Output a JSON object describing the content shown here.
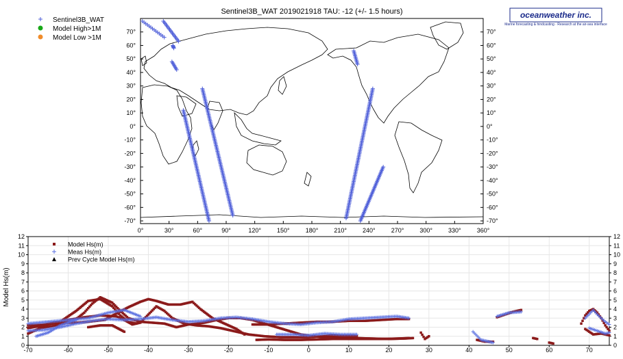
{
  "map_panel": {
    "title": "Sentinel3B_WAT 2019021918 TAU: -12 (+/- 1.5 hours)",
    "logo_text": "oceanweather inc.",
    "logo_tagline": "Marine forecasting & hindcasting · Research at the air-sea interface",
    "legend": [
      {
        "label": "Sentinel3B_WAT",
        "symbol": "plus",
        "color": "#4f5fd9"
      },
      {
        "label": "Model High>1M",
        "symbol": "circle",
        "color": "#18a818"
      },
      {
        "label": "Model Low >1M",
        "symbol": "circle",
        "color": "#f08c2a"
      }
    ],
    "x_ticks": [
      "0°",
      "30°",
      "60°",
      "90°",
      "120°",
      "150°",
      "180°",
      "210°",
      "240°",
      "270°",
      "300°",
      "330°",
      "360°"
    ],
    "y_ticks": [
      "70°",
      "60°",
      "50°",
      "40°",
      "30°",
      "20°",
      "10°",
      "0°",
      "-10°",
      "-20°",
      "-30°",
      "-40°",
      "-50°",
      "-60°",
      "-70°"
    ],
    "tracks": [
      {
        "lon": [
          2,
          25
        ],
        "lat": [
          78,
          66
        ]
      },
      {
        "lon": [
          24,
          40
        ],
        "lat": [
          78,
          63
        ]
      },
      {
        "lon": [
          34,
          35
        ],
        "lat": [
          60,
          58
        ]
      },
      {
        "lon": [
          33,
          38
        ],
        "lat": [
          48,
          42
        ]
      },
      {
        "lon": [
          45,
          72
        ],
        "lat": [
          12,
          -70
        ]
      },
      {
        "lon": [
          65,
          97
        ],
        "lat": [
          28,
          -66
        ]
      },
      {
        "lon": [
          216,
          244
        ],
        "lat": [
          -68,
          28
        ]
      },
      {
        "lon": [
          231,
          255
        ],
        "lat": [
          -70,
          -30
        ]
      },
      {
        "lon": [
          224,
          228
        ],
        "lat": [
          56,
          46
        ]
      }
    ]
  },
  "chart_data": {
    "type": "scatter",
    "title": "",
    "xlabel": "",
    "ylabel": "Model Hs(m)",
    "xlim": [
      -70,
      75
    ],
    "ylim": [
      0,
      12
    ],
    "x_ticks": [
      -70,
      -60,
      -50,
      -40,
      -30,
      -20,
      -10,
      0,
      10,
      20,
      30,
      40,
      50,
      60,
      70
    ],
    "y_ticks": [
      0,
      1,
      2,
      3,
      4,
      5,
      6,
      7,
      8,
      9,
      10,
      11,
      12
    ],
    "legend_position": "top-left",
    "series": [
      {
        "name": "Model Hs(m)",
        "marker": "square",
        "color": "#8b1a1a",
        "segments": [
          [
            [
              -70,
              1.3
            ],
            [
              -67,
              1.9
            ],
            [
              -64,
              2.1
            ],
            [
              -61,
              2.4
            ],
            [
              -58,
              2.9
            ],
            [
              -56,
              3.6
            ],
            [
              -54,
              4.6
            ],
            [
              -52,
              5.3
            ],
            [
              -49,
              4.7
            ],
            [
              -47,
              3.8
            ],
            [
              -45,
              3.0
            ],
            [
              -42,
              2.6
            ],
            [
              -39,
              2.5
            ],
            [
              -36,
              2.4
            ],
            [
              -33,
              2.0
            ],
            [
              -30,
              2.3
            ],
            [
              -26,
              2.5
            ],
            [
              -23,
              2.8
            ],
            [
              -20,
              3.0
            ],
            [
              -17,
              3.0
            ],
            [
              -14,
              2.8
            ],
            [
              -11,
              2.4
            ],
            [
              -8,
              2.0
            ],
            [
              -5,
              1.6
            ],
            [
              -2,
              1.2
            ],
            [
              1,
              1.0
            ],
            [
              4,
              0.9
            ],
            [
              8,
              0.85
            ],
            [
              12,
              0.8
            ],
            [
              16,
              0.75
            ],
            [
              20,
              0.7
            ],
            [
              24,
              0.75
            ],
            [
              26,
              0.8
            ]
          ],
          [
            [
              -70,
              2.2
            ],
            [
              -66,
              2.3
            ],
            [
              -62,
              2.5
            ],
            [
              -58,
              2.5
            ],
            [
              -55,
              2.6
            ],
            [
              -51,
              2.8
            ],
            [
              -48,
              3.5
            ],
            [
              -45,
              4.2
            ],
            [
              -42,
              4.8
            ],
            [
              -40,
              5.1
            ],
            [
              -38,
              4.9
            ],
            [
              -35,
              4.5
            ],
            [
              -32,
              4.5
            ],
            [
              -29,
              4.8
            ],
            [
              -27,
              4.0
            ],
            [
              -24,
              3.0
            ],
            [
              -21,
              2.4
            ],
            [
              -18,
              1.8
            ],
            [
              -16,
              1.2
            ]
          ],
          [
            [
              -70,
              1.9
            ],
            [
              -65,
              2.3
            ],
            [
              -60,
              2.8
            ],
            [
              -56,
              3.1
            ],
            [
              -52,
              3.3
            ],
            [
              -48,
              3.2
            ],
            [
              -46,
              2.8
            ],
            [
              -44,
              2.3
            ],
            [
              -42,
              2.5
            ],
            [
              -40,
              3.4
            ],
            [
              -38,
              4.3
            ],
            [
              -36,
              3.8
            ],
            [
              -34,
              3.0
            ],
            [
              -31,
              2.4
            ],
            [
              -28,
              2.2
            ],
            [
              -25,
              2.1
            ],
            [
              -22,
              1.9
            ],
            [
              -18,
              1.5
            ],
            [
              -15,
              1.2
            ],
            [
              -11,
              1.0
            ],
            [
              -7,
              0.9
            ],
            [
              -3,
              0.9
            ],
            [
              0,
              0.9
            ],
            [
              3,
              1.0
            ],
            [
              6,
              1.1
            ],
            [
              9,
              1.1
            ],
            [
              12,
              1.0
            ]
          ],
          [
            [
              -66,
              2.3
            ],
            [
              -62,
              2.6
            ],
            [
              -58,
              3.8
            ],
            [
              -55,
              4.9
            ],
            [
              -52,
              5.1
            ],
            [
              -49,
              4.3
            ],
            [
              -47,
              3.3
            ],
            [
              -45,
              2.6
            ],
            [
              -43,
              2.4
            ]
          ],
          [
            [
              -55,
              2.0
            ],
            [
              -52,
              2.2
            ],
            [
              -49,
              2.2
            ],
            [
              -46,
              1.5
            ]
          ],
          [
            [
              -13,
              0.6
            ],
            [
              -10,
              0.65
            ],
            [
              -6,
              0.6
            ],
            [
              -2,
              0.6
            ],
            [
              2,
              0.65
            ],
            [
              6,
              0.7
            ],
            [
              10,
              0.7
            ],
            [
              14,
              0.7
            ],
            [
              18,
              0.7
            ],
            [
              22,
              0.75
            ],
            [
              25,
              0.8
            ]
          ],
          [
            [
              -14,
              2.3
            ],
            [
              -10,
              2.3
            ],
            [
              -6,
              2.4
            ],
            [
              -2,
              2.5
            ],
            [
              2,
              2.6
            ],
            [
              6,
              2.6
            ],
            [
              10,
              2.7
            ],
            [
              14,
              2.7
            ],
            [
              18,
              2.8
            ],
            [
              22,
              2.9
            ],
            [
              25,
              2.9
            ]
          ],
          [
            [
              28,
              1.4
            ],
            [
              29,
              0.7
            ],
            [
              30,
              1.0
            ]
          ],
          [
            [
              42,
              0.6
            ],
            [
              44,
              0.4
            ],
            [
              46,
              0.4
            ]
          ],
          [
            [
              47,
              3.1
            ],
            [
              49,
              3.4
            ],
            [
              51,
              3.7
            ],
            [
              53,
              3.9
            ]
          ],
          [
            [
              56,
              0.8
            ],
            [
              57,
              0.7
            ]
          ],
          [
            [
              60,
              0.3
            ],
            [
              61,
              0.2
            ]
          ],
          [
            [
              68,
              2.4
            ],
            [
              69,
              3.3
            ],
            [
              70,
              3.8
            ],
            [
              71,
              4.0
            ],
            [
              72,
              3.6
            ],
            [
              73,
              3.0
            ],
            [
              74,
              2.2
            ],
            [
              75,
              1.6
            ]
          ],
          [
            [
              69,
              1.8
            ],
            [
              71,
              1.2
            ],
            [
              73,
              1.3
            ],
            [
              75,
              1.1
            ]
          ]
        ]
      },
      {
        "name": "Meas Hs(m)",
        "marker": "plus",
        "color": "#5a6fe0",
        "segments": [
          [
            [
              -70,
              1.6
            ],
            [
              -66,
              1.7
            ],
            [
              -62,
              2.0
            ],
            [
              -58,
              2.4
            ],
            [
              -54,
              2.7
            ],
            [
              -50,
              2.9
            ],
            [
              -46,
              2.8
            ],
            [
              -42,
              2.9
            ],
            [
              -38,
              3.1
            ],
            [
              -34,
              2.8
            ],
            [
              -30,
              2.6
            ],
            [
              -26,
              2.7
            ],
            [
              -22,
              3.0
            ],
            [
              -18,
              3.1
            ],
            [
              -14,
              2.9
            ],
            [
              -10,
              2.6
            ],
            [
              -6,
              2.4
            ],
            [
              -2,
              2.3
            ],
            [
              2,
              2.5
            ],
            [
              6,
              2.6
            ],
            [
              10,
              2.9
            ],
            [
              14,
              3.0
            ],
            [
              18,
              3.1
            ],
            [
              22,
              3.2
            ],
            [
              25,
              3.0
            ]
          ],
          [
            [
              -70,
              2.4
            ],
            [
              -65,
              2.6
            ],
            [
              -60,
              2.8
            ],
            [
              -55,
              3.0
            ],
            [
              -50,
              3.6
            ],
            [
              -46,
              3.9
            ],
            [
              -42,
              3.2
            ]
          ],
          [
            [
              -68,
              1.0
            ],
            [
              -65,
              1.4
            ],
            [
              -62,
              2.2
            ],
            [
              -58,
              2.8
            ]
          ],
          [
            [
              -8,
              1.2
            ],
            [
              -4,
              1.2
            ],
            [
              0,
              1.1
            ],
            [
              4,
              1.3
            ],
            [
              8,
              1.2
            ],
            [
              12,
              1.2
            ]
          ],
          [
            [
              41,
              1.5
            ],
            [
              43,
              0.6
            ],
            [
              46,
              0.3
            ]
          ],
          [
            [
              47,
              3.2
            ],
            [
              50,
              3.6
            ],
            [
              53,
              3.7
            ]
          ],
          [
            [
              69,
              3.0
            ],
            [
              71,
              3.9
            ],
            [
              72,
              3.4
            ],
            [
              74,
              2.6
            ],
            [
              75,
              2.3
            ]
          ],
          [
            [
              70,
              1.9
            ],
            [
              72,
              1.6
            ],
            [
              74,
              1.3
            ],
            [
              75,
              1.4
            ]
          ]
        ]
      },
      {
        "name": "Prev Cycle Model Hs(m)",
        "marker": "triangle",
        "color": "#000000",
        "segments": []
      }
    ]
  }
}
